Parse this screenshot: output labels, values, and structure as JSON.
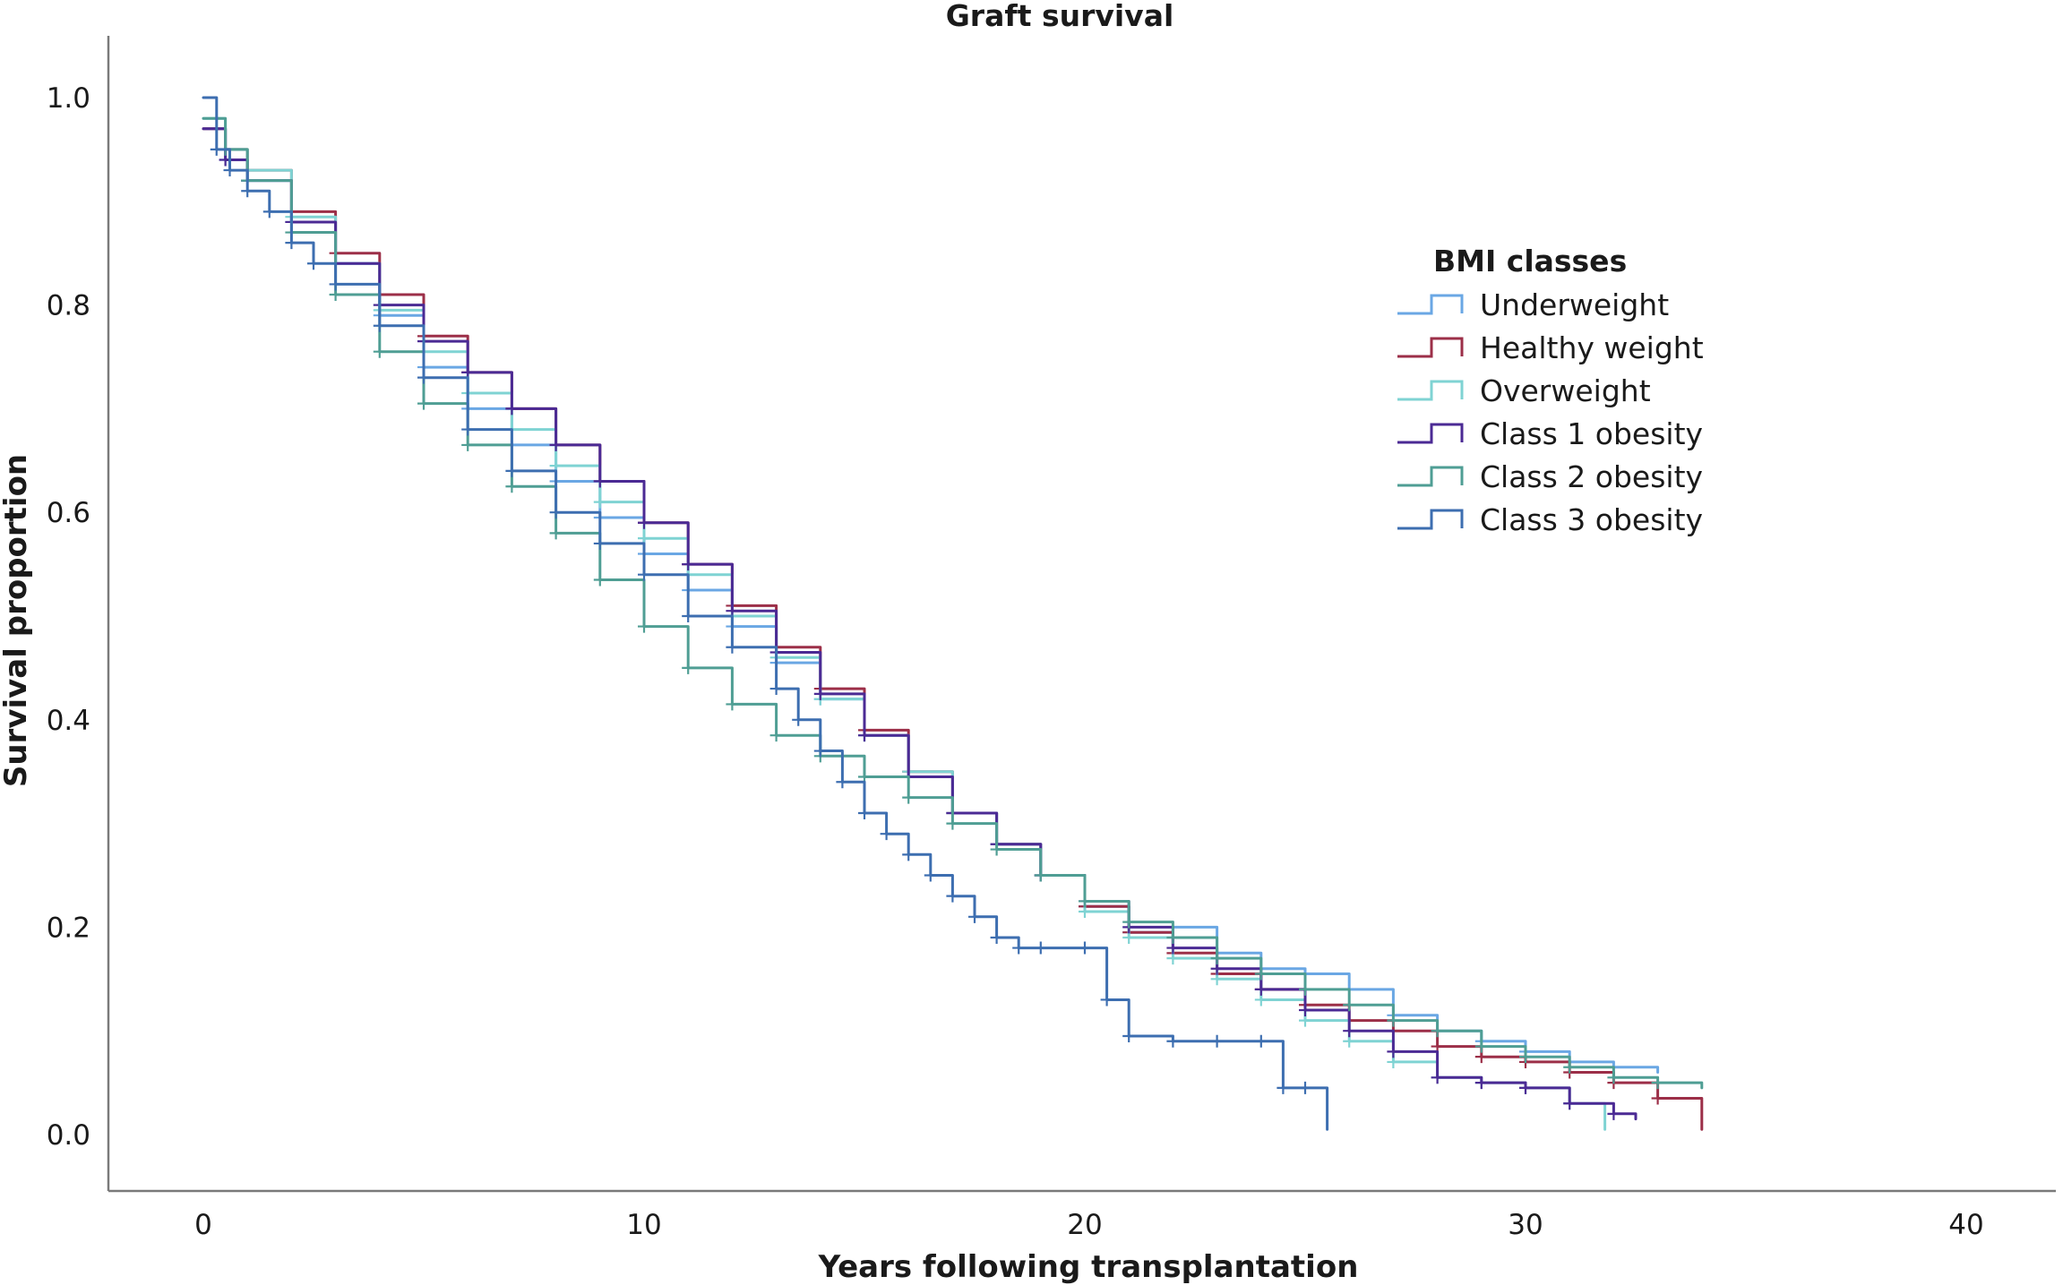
{
  "chart_data": {
    "type": "line",
    "title": "Graft survival",
    "xlabel": "Years following transplantation",
    "ylabel": "Survival proportion",
    "xlim": [
      0,
      40
    ],
    "ylim": [
      0,
      1.0
    ],
    "x_ticks": [
      "0",
      "10",
      "20",
      "30",
      "40"
    ],
    "y_ticks": [
      "0.0",
      "0.2",
      "0.4",
      "0.6",
      "0.8",
      "1.0"
    ],
    "grid": false,
    "legend": {
      "title": "BMI classes",
      "placement": "right"
    },
    "series": [
      {
        "name": "Underweight",
        "color": "#6aa7e4",
        "x": [
          0,
          0.5,
          1,
          2,
          3,
          4,
          5,
          6,
          7,
          8,
          9,
          10,
          11,
          12,
          13,
          14,
          15,
          16,
          17,
          18,
          19,
          20,
          21,
          22,
          23,
          24,
          25,
          26,
          27,
          28,
          29,
          30,
          31,
          32,
          33
        ],
        "y": [
          0.97,
          0.94,
          0.92,
          0.88,
          0.84,
          0.79,
          0.74,
          0.7,
          0.665,
          0.63,
          0.595,
          0.56,
          0.525,
          0.49,
          0.455,
          0.42,
          0.385,
          0.345,
          0.31,
          0.28,
          0.25,
          0.22,
          0.195,
          0.2,
          0.175,
          0.16,
          0.155,
          0.14,
          0.115,
          0.1,
          0.09,
          0.08,
          0.07,
          0.065,
          0.06
        ]
      },
      {
        "name": "Healthy weight",
        "color": "#9c2f48",
        "x": [
          0,
          0.5,
          1,
          2,
          3,
          4,
          5,
          6,
          7,
          8,
          9,
          10,
          11,
          12,
          13,
          14,
          15,
          16,
          17,
          18,
          19,
          20,
          21,
          22,
          23,
          24,
          25,
          26,
          27,
          28,
          29,
          30,
          31,
          32,
          33,
          34
        ],
        "y": [
          0.97,
          0.95,
          0.93,
          0.89,
          0.85,
          0.81,
          0.77,
          0.735,
          0.7,
          0.665,
          0.63,
          0.59,
          0.55,
          0.51,
          0.47,
          0.43,
          0.39,
          0.35,
          0.31,
          0.28,
          0.25,
          0.22,
          0.195,
          0.175,
          0.155,
          0.14,
          0.125,
          0.11,
          0.1,
          0.085,
          0.075,
          0.07,
          0.06,
          0.05,
          0.035,
          0.005
        ]
      },
      {
        "name": "Overweight",
        "color": "#7fd3d3",
        "x": [
          0,
          0.5,
          1,
          2,
          3,
          4,
          5,
          6,
          7,
          8,
          9,
          10,
          11,
          12,
          13,
          14,
          15,
          16,
          17,
          18,
          19,
          20,
          21,
          22,
          23,
          24,
          25,
          26,
          27,
          28,
          29,
          30,
          31,
          31.8
        ],
        "y": [
          0.98,
          0.95,
          0.93,
          0.885,
          0.84,
          0.795,
          0.755,
          0.715,
          0.68,
          0.645,
          0.61,
          0.575,
          0.54,
          0.5,
          0.46,
          0.42,
          0.385,
          0.35,
          0.31,
          0.28,
          0.25,
          0.215,
          0.19,
          0.17,
          0.15,
          0.13,
          0.11,
          0.09,
          0.07,
          0.055,
          0.05,
          0.045,
          0.03,
          0.005
        ]
      },
      {
        "name": "Class 1 obesity",
        "color": "#4b2a94",
        "x": [
          0,
          0.5,
          1,
          2,
          3,
          4,
          5,
          6,
          7,
          8,
          9,
          10,
          11,
          12,
          13,
          14,
          15,
          16,
          17,
          18,
          19,
          20,
          21,
          22,
          23,
          24,
          25,
          26,
          27,
          28,
          29,
          30,
          31,
          32,
          32.5
        ],
        "y": [
          0.97,
          0.94,
          0.92,
          0.88,
          0.84,
          0.8,
          0.765,
          0.735,
          0.7,
          0.665,
          0.63,
          0.59,
          0.55,
          0.505,
          0.465,
          0.425,
          0.385,
          0.345,
          0.31,
          0.28,
          0.25,
          0.225,
          0.2,
          0.18,
          0.16,
          0.14,
          0.12,
          0.1,
          0.08,
          0.055,
          0.05,
          0.045,
          0.03,
          0.02,
          0.015
        ]
      },
      {
        "name": "Class 2 obesity",
        "color": "#4f9e94",
        "x": [
          0,
          0.5,
          1,
          2,
          3,
          4,
          5,
          6,
          7,
          8,
          9,
          10,
          11,
          12,
          13,
          14,
          15,
          16,
          17,
          18,
          19,
          20,
          21,
          22,
          23,
          24,
          25,
          26,
          27,
          28,
          29,
          30,
          31,
          32,
          33,
          34
        ],
        "y": [
          0.98,
          0.95,
          0.92,
          0.87,
          0.81,
          0.755,
          0.705,
          0.665,
          0.625,
          0.58,
          0.535,
          0.49,
          0.45,
          0.415,
          0.385,
          0.365,
          0.345,
          0.325,
          0.3,
          0.275,
          0.25,
          0.225,
          0.205,
          0.19,
          0.17,
          0.155,
          0.14,
          0.125,
          0.11,
          0.1,
          0.085,
          0.075,
          0.065,
          0.055,
          0.05,
          0.045
        ]
      },
      {
        "name": "Class 3 obesity",
        "color": "#3d6eb0",
        "x": [
          0,
          0.3,
          0.6,
          1,
          1.5,
          2,
          2.5,
          3,
          4,
          5,
          6,
          7,
          8,
          9,
          10,
          11,
          12,
          13,
          13.5,
          14,
          14.5,
          15,
          15.5,
          16,
          16.5,
          17,
          17.5,
          18,
          18.5,
          19,
          20,
          20.5,
          21,
          22,
          23,
          24,
          24.5,
          25,
          25.5
        ],
        "y": [
          1.0,
          0.95,
          0.93,
          0.91,
          0.89,
          0.86,
          0.84,
          0.82,
          0.78,
          0.73,
          0.68,
          0.64,
          0.6,
          0.57,
          0.54,
          0.5,
          0.47,
          0.43,
          0.4,
          0.37,
          0.34,
          0.31,
          0.29,
          0.27,
          0.25,
          0.23,
          0.21,
          0.19,
          0.18,
          0.18,
          0.18,
          0.13,
          0.095,
          0.09,
          0.09,
          0.09,
          0.045,
          0.045,
          0.005
        ]
      }
    ]
  }
}
